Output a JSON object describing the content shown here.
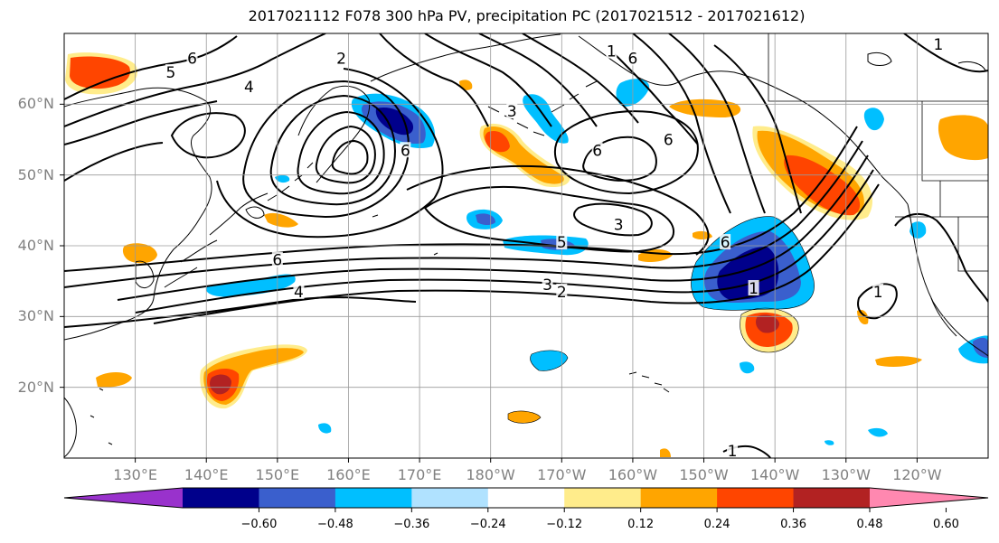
{
  "title": "2017021112 F078 300 hPa PV, precipitation PC (2017021512 - 2017021612)",
  "lat_labels": [
    "60°N",
    "50°N",
    "40°N",
    "30°N",
    "20°N"
  ],
  "lat_values": [
    60,
    50,
    40,
    30,
    20
  ],
  "lon_labels": [
    "130°E",
    "140°E",
    "150°E",
    "160°E",
    "170°E",
    "180°W",
    "170°W",
    "160°W",
    "150°W",
    "140°W",
    "130°W",
    "120°W"
  ],
  "lon_values": [
    130,
    140,
    150,
    160,
    170,
    180,
    190,
    200,
    210,
    220,
    230,
    240
  ],
  "map_extent": {
    "lon_min": 120,
    "lon_max": 250,
    "lat_min": 10,
    "lat_max": 70
  },
  "contour_labels": [
    {
      "text": "6",
      "lon": 138,
      "lat": 66.5
    },
    {
      "text": "5",
      "lon": 135,
      "lat": 64.5
    },
    {
      "text": "4",
      "lon": 146,
      "lat": 62.5
    },
    {
      "text": "2",
      "lon": 159,
      "lat": 66.5
    },
    {
      "text": "1",
      "lon": 197,
      "lat": 67.5
    },
    {
      "text": "6",
      "lon": 200,
      "lat": 66.5
    },
    {
      "text": "3",
      "lon": 183,
      "lat": 59
    },
    {
      "text": "6",
      "lon": 168,
      "lat": 53.5
    },
    {
      "text": "6",
      "lon": 195,
      "lat": 53.5
    },
    {
      "text": "6",
      "lon": 205,
      "lat": 55
    },
    {
      "text": "6",
      "lon": 150,
      "lat": 38
    },
    {
      "text": "4",
      "lon": 153,
      "lat": 33.5
    },
    {
      "text": "3",
      "lon": 198,
      "lat": 43
    },
    {
      "text": "5",
      "lon": 190,
      "lat": 40.5
    },
    {
      "text": "3",
      "lon": 188,
      "lat": 34.5
    },
    {
      "text": "2",
      "lon": 190,
      "lat": 33.5
    },
    {
      "text": "6",
      "lon": 213,
      "lat": 40.5
    },
    {
      "text": "1",
      "lon": 217,
      "lat": 34
    },
    {
      "text": "1",
      "lon": 234.5,
      "lat": 33.5
    },
    {
      "text": "1",
      "lon": 214,
      "lat": 11
    },
    {
      "text": "1",
      "lon": 243,
      "lat": 68.5
    }
  ],
  "colorbar": {
    "colors": [
      "#9932CC",
      "#00008B",
      "#3A5FCD",
      "#00BFFF",
      "#B0E2FF",
      "#FFFFFF",
      "#FFEC8B",
      "#FFA500",
      "#FF4500",
      "#B22222",
      "#FF88B0"
    ],
    "ticks": [
      "−0.60",
      "−0.48",
      "−0.36",
      "−0.24",
      "−0.12",
      "0.12",
      "0.24",
      "0.36",
      "0.48",
      "0.60"
    ]
  }
}
